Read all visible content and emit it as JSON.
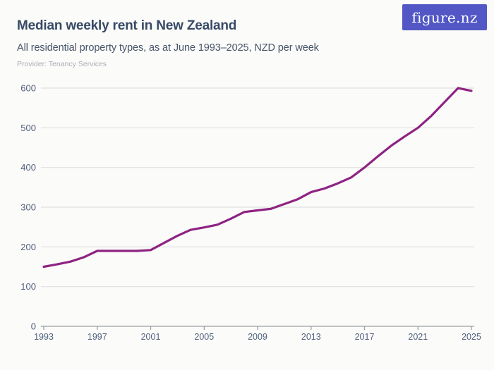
{
  "header": {
    "title": "Median weekly rent in New Zealand",
    "subtitle": "All residential property types, as at June 1993–2025, NZD per week",
    "provider": "Provider: Tenancy Services",
    "logo_text": "figure.nz"
  },
  "colors": {
    "background": "#fbfbf9",
    "line": "#8e2382",
    "logo_bg": "#5257c5",
    "logo_text": "#ffffff",
    "title": "#374a66",
    "subtitle": "#475569",
    "provider": "#a9aeb6",
    "axis_label": "#51607d",
    "gridline": "#e0e0e0",
    "axis_line": "#9aa0a6"
  },
  "chart_data": {
    "type": "line",
    "title": "Median weekly rent in New Zealand",
    "subtitle": "All residential property types, as at June 1993–2025, NZD per week",
    "xlabel": "",
    "ylabel": "",
    "legend": "none",
    "grid": "horizontal",
    "xlim": [
      1993,
      2025
    ],
    "ylim": [
      0,
      600
    ],
    "x_ticks": [
      1993,
      1997,
      2001,
      2005,
      2009,
      2013,
      2017,
      2021,
      2025
    ],
    "y_ticks": [
      0,
      100,
      200,
      300,
      400,
      500,
      600
    ],
    "x": [
      1993,
      1994,
      1995,
      1996,
      1997,
      1998,
      1999,
      2000,
      2001,
      2002,
      2003,
      2004,
      2005,
      2006,
      2007,
      2008,
      2009,
      2010,
      2011,
      2012,
      2013,
      2014,
      2015,
      2016,
      2017,
      2018,
      2019,
      2020,
      2021,
      2022,
      2023,
      2024,
      2025
    ],
    "series": [
      {
        "name": "Median weekly rent, NZD per week",
        "values": [
          150,
          156,
          163,
          174,
          190,
          190,
          190,
          190,
          192,
          210,
          228,
          243,
          249,
          256,
          271,
          288,
          292,
          296,
          308,
          320,
          338,
          347,
          360,
          375,
          400,
          428,
          455,
          478,
          500,
          530,
          565,
          600,
          593
        ]
      }
    ]
  }
}
